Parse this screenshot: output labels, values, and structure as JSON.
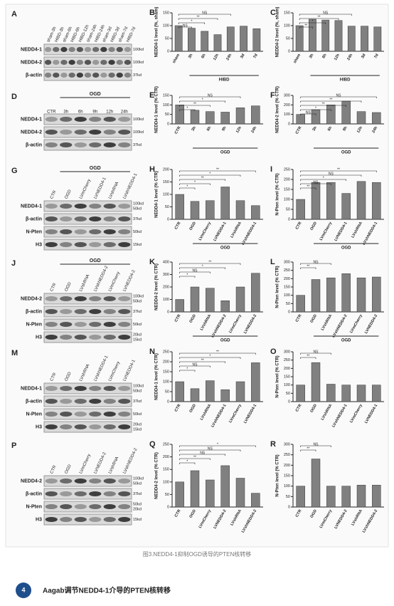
{
  "figure": {
    "rows": [
      {
        "blot": {
          "letter": "A",
          "group": null,
          "lanes": [
            "sham-3h",
            "HIBD-3h",
            "sham-6h",
            "HIBD-6h",
            "HIBD-12h",
            "sham-24h",
            "HIBD-24h",
            "sham-3d",
            "HIBD-3d",
            "sham-7d",
            "HIBD-7d"
          ],
          "bands": [
            {
              "name": "NEDD4-1",
              "sizes": [
                "100kd"
              ]
            },
            {
              "name": "NEDD4-2",
              "sizes": [
                "100kd"
              ]
            },
            {
              "name": "β-actin",
              "sizes": [
                "37kd"
              ]
            }
          ]
        },
        "charts": [
          {
            "type": "bar",
            "letter": "B",
            "ylabel": "NEDD4-1 level (%, sham)",
            "group": "HIBD",
            "categories": [
              "sham",
              "3h",
              "6h",
              "12h",
              "24h",
              "3d",
              "7d"
            ],
            "values": [
              100,
              90,
              78,
              65,
              95,
              98,
              88
            ],
            "ylim": [
              0,
              150
            ],
            "yticks": [
              0,
              50,
              100,
              150
            ],
            "sig": [
              "NS",
              "*",
              "**",
              "NS"
            ]
          },
          {
            "type": "bar",
            "letter": "C",
            "ylabel": "NEDD4-2 level (%, sham)",
            "group": "HIBD",
            "categories": [
              "sham",
              "3h",
              "6h",
              "12h",
              "24h",
              "3d",
              "7d"
            ],
            "values": [
              100,
              125,
              122,
              120,
              98,
              98,
              95
            ],
            "ylim": [
              0,
              150
            ],
            "yticks": [
              0,
              50,
              100,
              150
            ],
            "sig": [
              "**",
              "*",
              "**",
              "NS"
            ]
          }
        ]
      },
      {
        "blot": {
          "letter": "D",
          "group": "OGD",
          "lanes": [
            "CTR",
            "3h",
            "6h",
            "9h",
            "12h",
            "24h"
          ],
          "bands": [
            {
              "name": "NEDD4-1",
              "sizes": [
                "100kd"
              ]
            },
            {
              "name": "NEDD4-2",
              "sizes": [
                "100kd"
              ]
            },
            {
              "name": "β-actin",
              "sizes": [
                "37kd"
              ]
            }
          ]
        },
        "charts": [
          {
            "type": "bar",
            "letter": "E",
            "ylabel": "NEDD4-1 level (% CTR)",
            "group": "OGD",
            "categories": [
              "CTR",
              "3h",
              "6h",
              "9h",
              "12h",
              "24h"
            ],
            "values": [
              100,
              72,
              65,
              62,
              85,
              95
            ],
            "ylim": [
              0,
              150
            ],
            "yticks": [
              0,
              50,
              100,
              150
            ],
            "sig": [
              "*",
              "**",
              "*",
              "NS"
            ]
          },
          {
            "type": "bar",
            "letter": "F",
            "ylabel": "NEDD4-2 level (% CTR)",
            "group": "OGD",
            "categories": [
              "CTR",
              "3h",
              "6h",
              "9h",
              "12h",
              "24h"
            ],
            "values": [
              100,
              150,
              200,
              240,
              130,
              120
            ],
            "ylim": [
              0,
              300
            ],
            "yticks": [
              0,
              100,
              200,
              300
            ],
            "sig": [
              "NS",
              "*",
              "**",
              "**",
              "NS"
            ]
          }
        ]
      },
      {
        "blot": {
          "letter": "G",
          "group": "OGD",
          "lanes": [
            "CTR",
            "OGD",
            "LVmCherry",
            "LVNEDD4-1",
            "LVshRNA",
            "LVshNEDD4-1"
          ],
          "bands": [
            {
              "name": "NEDD4-1",
              "sizes": [
                "100kd",
                "50kd"
              ]
            },
            {
              "name": "β-actin",
              "sizes": [
                "37kd"
              ]
            },
            {
              "name": "N-Pten",
              "sizes": [
                "50kd"
              ]
            },
            {
              "name": "H3",
              "sizes": [
                "15kd"
              ]
            }
          ]
        },
        "charts": [
          {
            "type": "bar",
            "letter": "H",
            "ylabel": "NEDD4-1 level (% CTR)",
            "group": "OGD",
            "categories": [
              "CTR",
              "OGD",
              "LVmCherry",
              "LVNEDD4-1",
              "LVshRNA",
              "LVshNEDD4-1"
            ],
            "values": [
              100,
              72,
              75,
              130,
              75,
              55
            ],
            "ylim": [
              0,
              200
            ],
            "yticks": [
              0,
              50,
              100,
              150,
              200
            ],
            "sig": [
              "*",
              "*",
              "**",
              "*",
              "**"
            ]
          },
          {
            "type": "bar",
            "letter": "I",
            "ylabel": "N-Pten level (% CTR)",
            "group": "OGD",
            "categories": [
              "CTR",
              "OGD",
              "LVmCherry",
              "LVNEDD4-1",
              "LVshRNA",
              "LVshNEDD4-1"
            ],
            "values": [
              100,
              185,
              185,
              130,
              190,
              185
            ],
            "ylim": [
              0,
              250
            ],
            "yticks": [
              0,
              50,
              100,
              150,
              200,
              250
            ],
            "sig": [
              "**",
              "NS",
              "*",
              "NS",
              "**"
            ]
          }
        ]
      },
      {
        "blot": {
          "letter": "J",
          "group": "OGD",
          "lanes": [
            "CTR",
            "OGD",
            "LVshRNA",
            "LVshNEDD4-2",
            "LVmCherry",
            "LVNEDD4-2"
          ],
          "bands": [
            {
              "name": "NEDD4-2",
              "sizes": [
                "100kd",
                "50kd"
              ]
            },
            {
              "name": "β-actin",
              "sizes": [
                "37kd"
              ]
            },
            {
              "name": "N-Pten",
              "sizes": [
                "50kd"
              ]
            },
            {
              "name": "H3",
              "sizes": [
                "20kd",
                "15kd"
              ]
            }
          ]
        },
        "charts": [
          {
            "type": "bar",
            "letter": "K",
            "ylabel": "NEDD4-2 level (% CTR)",
            "group": "OGD",
            "categories": [
              "CTR",
              "OGD",
              "LVshRNA",
              "LVshNEDD4-2",
              "LVmCherry",
              "LVNEDD4-2"
            ],
            "values": [
              100,
              200,
              190,
              90,
              200,
              310
            ],
            "ylim": [
              0,
              400
            ],
            "yticks": [
              0,
              100,
              200,
              300,
              400
            ],
            "sig": [
              "*",
              "NS",
              "*",
              "**"
            ]
          },
          {
            "type": "bar",
            "letter": "L",
            "ylabel": "N-Pten level (% CTR)",
            "group": "OGD",
            "categories": [
              "CTR",
              "OGD",
              "LVshRNA",
              "LVshNEDD4-2",
              "LVmCherry",
              "LVNEDD4-2"
            ],
            "values": [
              100,
              195,
              205,
              230,
              205,
              210
            ],
            "ylim": [
              0,
              300
            ],
            "yticks": [
              0,
              50,
              100,
              150,
              200,
              250,
              300
            ],
            "sig": [
              "**",
              "NS"
            ]
          }
        ]
      },
      {
        "blot": {
          "letter": "M",
          "group": null,
          "lanes": [
            "CTR",
            "OGD",
            "LVshRNA",
            "LVshNEDD4-1",
            "LVmCherry",
            "LVNEDD4-1"
          ],
          "bands": [
            {
              "name": "NEDD4-1",
              "sizes": [
                "100kd",
                "50kd"
              ]
            },
            {
              "name": "β-actin",
              "sizes": [
                "37kd"
              ]
            },
            {
              "name": "N-Pten",
              "sizes": [
                "50kd"
              ]
            },
            {
              "name": "H3",
              "sizes": [
                "20kd",
                "15kd"
              ]
            }
          ]
        },
        "charts": [
          {
            "type": "bar",
            "letter": "N",
            "ylabel": "NEDD4-1 level (% CTR)",
            "group": null,
            "categories": [
              "CTR",
              "OGD",
              "LVshRNA",
              "LVshNEDD4-1",
              "LVmCherry",
              "LVNEDD4-1"
            ],
            "values": [
              100,
              65,
              105,
              60,
              100,
              195
            ],
            "ylim": [
              0,
              250
            ],
            "yticks": [
              0,
              50,
              100,
              150,
              200,
              250
            ],
            "sig": [
              "*",
              "NS",
              "**",
              "*",
              "**"
            ]
          },
          {
            "type": "bar",
            "letter": "O",
            "ylabel": "N-Pten level (% CTR)",
            "group": null,
            "categories": [
              "CTR",
              "OGD",
              "LVshRNA",
              "LVshNEDD4-1",
              "LVmCherry",
              "LVNEDD4-1"
            ],
            "values": [
              100,
              235,
              105,
              100,
              100,
              100
            ],
            "ylim": [
              0,
              300
            ],
            "yticks": [
              0,
              50,
              100,
              150,
              200,
              250,
              300
            ],
            "sig": [
              "**",
              "NS"
            ]
          }
        ]
      },
      {
        "blot": {
          "letter": "P",
          "group": null,
          "lanes": [
            "CTR",
            "OGD",
            "LVmCherry",
            "LVNEDD4-2",
            "LVshRNA",
            "LVshNEDD4-2"
          ],
          "bands": [
            {
              "name": "NEDD4-2",
              "sizes": [
                "100kd",
                "50kd"
              ]
            },
            {
              "name": "β-actin",
              "sizes": [
                "37kd"
              ]
            },
            {
              "name": "N-Pten",
              "sizes": [
                "50kd",
                "20kd"
              ]
            },
            {
              "name": "H3",
              "sizes": [
                "15kd"
              ]
            }
          ]
        },
        "charts": [
          {
            "type": "bar",
            "letter": "Q",
            "ylabel": "NEDD4-2 level (% CTR)",
            "group": null,
            "categories": [
              "CTR",
              "OGD",
              "LVmCherry",
              "LVNEDD4-2",
              "LVshRNA",
              "LVshNEDD4-2"
            ],
            "values": [
              100,
              145,
              108,
              165,
              115,
              55
            ],
            "ylim": [
              0,
              250
            ],
            "yticks": [
              0,
              50,
              100,
              150,
              200,
              250
            ],
            "sig": [
              "*",
              "**",
              "NS",
              "NS",
              "*"
            ]
          },
          {
            "type": "bar",
            "letter": "R",
            "ylabel": "N-Pten level (% CTR)",
            "group": null,
            "categories": [
              "CTR",
              "OGD",
              "LVmCherry",
              "LVNEDD4-2",
              "LVshRNA",
              "LVshNEDD4-2"
            ],
            "values": [
              100,
              230,
              100,
              100,
              105,
              105
            ],
            "ylim": [
              0,
              300
            ],
            "yticks": [
              0,
              50,
              100,
              150,
              200,
              250,
              300
            ],
            "sig": [
              "**",
              "NS"
            ]
          }
        ]
      }
    ],
    "caption": "图3.NEDD4-1抑制OGD诱导的PTEN核转移"
  },
  "section": {
    "number": "4",
    "title": "Aagab调节NEDD4-1介导的PTEN核转移"
  }
}
